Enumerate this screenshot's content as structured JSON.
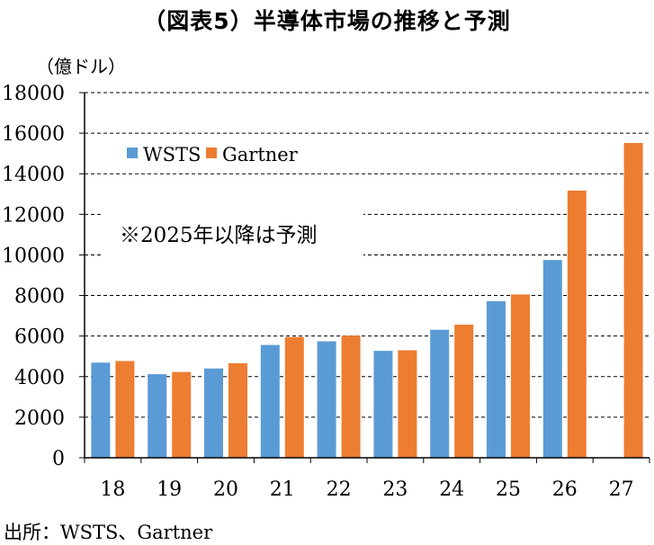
{
  "title": "（図表5）半導体市場の推移と予測",
  "unit": "（億ドル）",
  "source": "出所：WSTS、Gartner",
  "note": "※2025年以降は予測",
  "colors": {
    "wsts": "#5b9bd5",
    "gartner": "#ed7d31"
  },
  "chart_data": {
    "type": "bar",
    "categories": [
      "18",
      "19",
      "20",
      "21",
      "22",
      "23",
      "24",
      "25",
      "26",
      "27"
    ],
    "series": [
      {
        "name": "WSTS",
        "values": [
          4690,
          4120,
          4400,
          5560,
          5740,
          5270,
          6310,
          7720,
          9750,
          null
        ]
      },
      {
        "name": "Gartner",
        "values": [
          4770,
          4230,
          4660,
          5950,
          6020,
          5300,
          6560,
          8050,
          13170,
          15520
        ]
      }
    ],
    "ylim": [
      0,
      18000
    ],
    "yticks": [
      0,
      2000,
      4000,
      6000,
      8000,
      10000,
      12000,
      14000,
      16000,
      18000
    ],
    "xlabel": "",
    "ylabel": "",
    "grid": true,
    "legend": "top-left"
  }
}
